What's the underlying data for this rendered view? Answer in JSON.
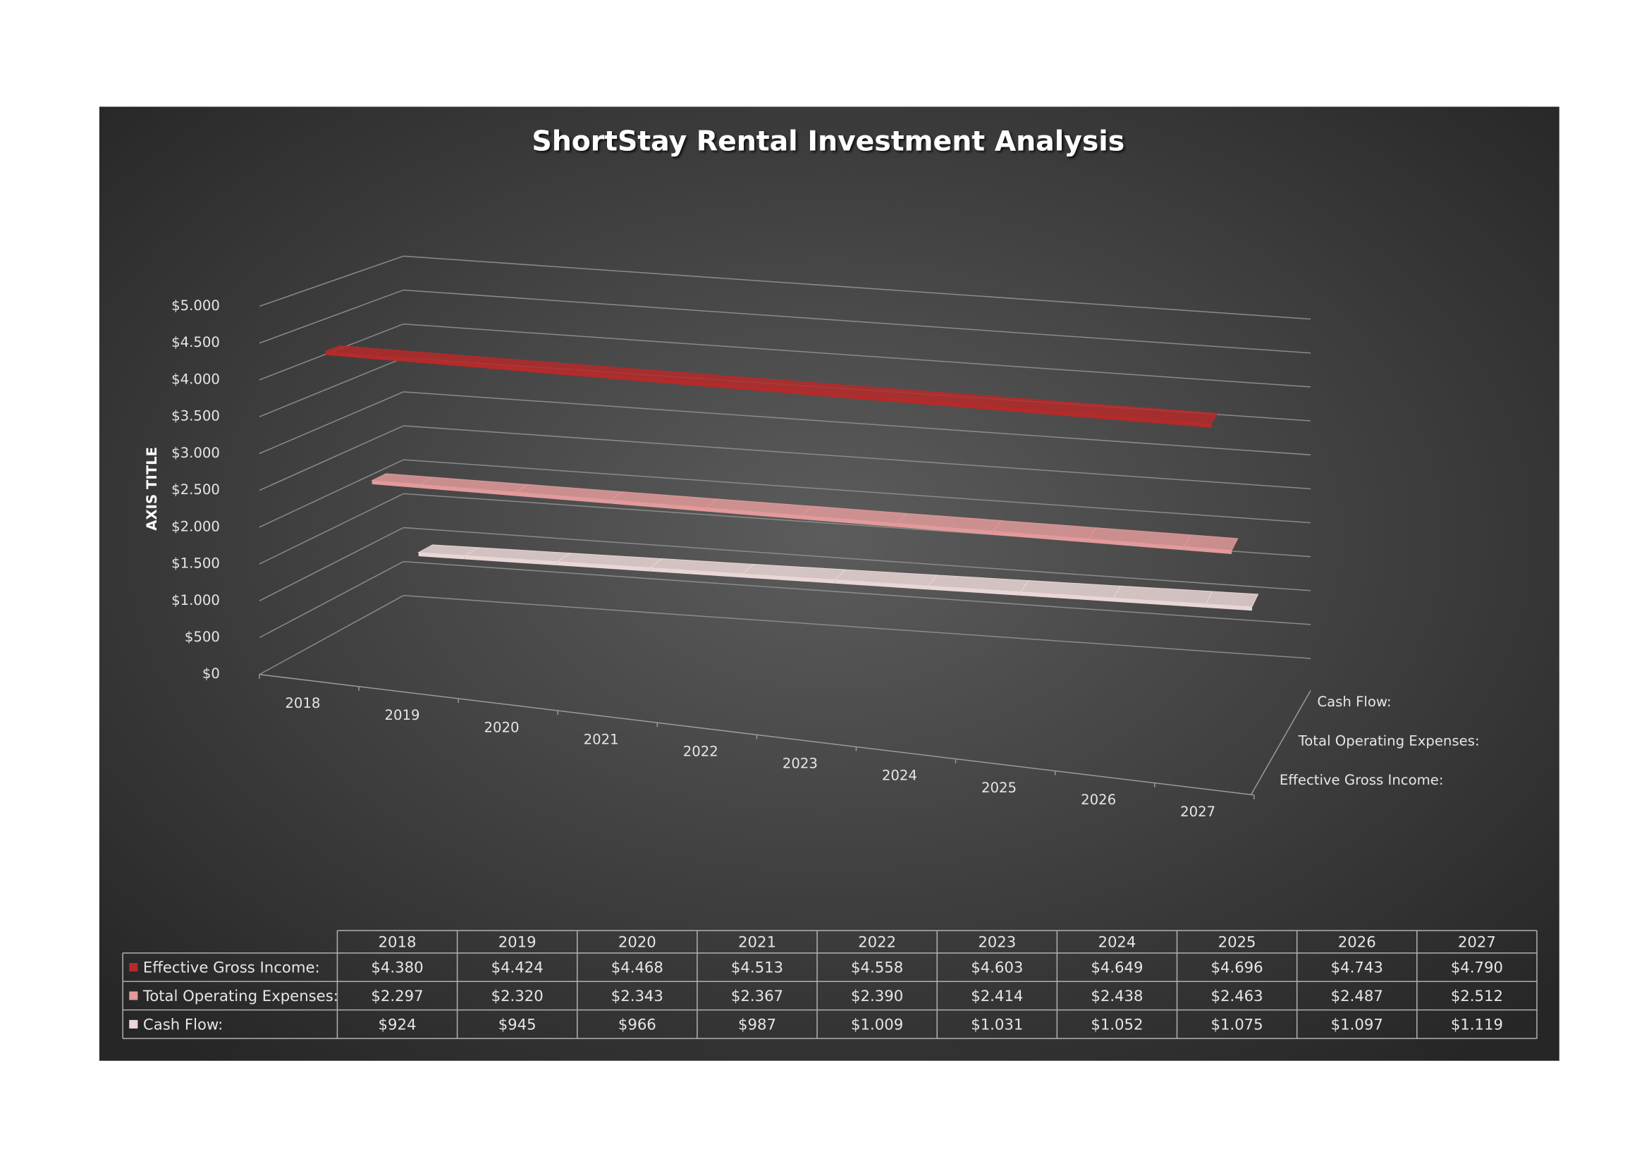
{
  "chart_data": {
    "type": "line3d",
    "title": "ShortStay Rental Investment Analysis",
    "y_label": "AXIS TITLE",
    "categories": [
      "2018",
      "2019",
      "2020",
      "2021",
      "2022",
      "2023",
      "2024",
      "2025",
      "2026",
      "2027"
    ],
    "series": [
      {
        "name": "Effective Gross Income:",
        "color": "#b52a2a",
        "values": [
          4380,
          4424,
          4468,
          4513,
          4558,
          4603,
          4649,
          4696,
          4743,
          4790
        ],
        "value_labels": [
          "$4.380",
          "$4.424",
          "$4.468",
          "$4.513",
          "$4.558",
          "$4.603",
          "$4.649",
          "$4.696",
          "$4.743",
          "$4.790"
        ]
      },
      {
        "name": "Total Operating Expenses:",
        "color": "#e29a9a",
        "values": [
          2297,
          2320,
          2343,
          2367,
          2390,
          2414,
          2438,
          2463,
          2487,
          2512
        ],
        "value_labels": [
          "$2.297",
          "$2.320",
          "$2.343",
          "$2.367",
          "$2.390",
          "$2.414",
          "$2.438",
          "$2.463",
          "$2.487",
          "$2.512"
        ]
      },
      {
        "name": "Cash Flow:",
        "color": "#ead6d6",
        "values": [
          924,
          945,
          966,
          987,
          1009,
          1031,
          1052,
          1075,
          1097,
          1119
        ],
        "value_labels": [
          "$924",
          "$945",
          "$966",
          "$987",
          "$1.009",
          "$1.031",
          "$1.052",
          "$1.075",
          "$1.097",
          "$1.119"
        ]
      }
    ],
    "ylim": [
      0,
      5000
    ],
    "yticks": [
      {
        "value": 0,
        "label": "$0"
      },
      {
        "value": 500,
        "label": "$500"
      },
      {
        "value": 1000,
        "label": "$1.000"
      },
      {
        "value": 1500,
        "label": "$1.500"
      },
      {
        "value": 2000,
        "label": "$2.000"
      },
      {
        "value": 2500,
        "label": "$2.500"
      },
      {
        "value": 3000,
        "label": "$3.000"
      },
      {
        "value": 3500,
        "label": "$3.500"
      },
      {
        "value": 4000,
        "label": "$4.000"
      },
      {
        "value": 4500,
        "label": "$4.500"
      },
      {
        "value": 5000,
        "label": "$5.000"
      }
    ],
    "grid": true,
    "data_table": true
  }
}
